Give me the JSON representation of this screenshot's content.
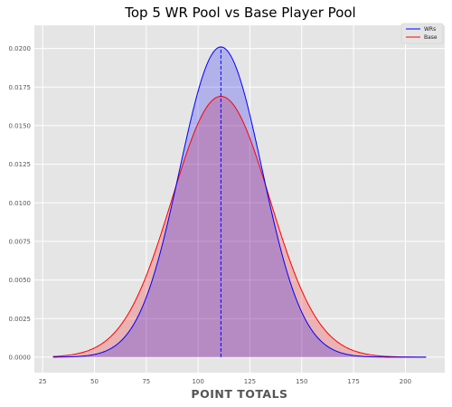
{
  "chart_data": {
    "type": "line",
    "title": "Top 5 WR Pool vs Base Player Pool",
    "xlabel": "POINT TOTALS",
    "ylabel": "",
    "xlim": [
      21,
      219
    ],
    "ylim": [
      -0.001,
      0.0215
    ],
    "x_range": [
      30,
      210
    ],
    "xticks": [
      25,
      50,
      75,
      100,
      125,
      150,
      175,
      200
    ],
    "yticks": [
      "0.0000",
      "0.0025",
      "0.0050",
      "0.0075",
      "0.0100",
      "0.0125",
      "0.0150",
      "0.0175",
      "0.0200"
    ],
    "grid": true,
    "legend": "top-right",
    "series": [
      {
        "name": "WRs",
        "color": "#0000ff",
        "fill": "#0000ff",
        "mean": 111,
        "std": 19.85,
        "peak": 0.0201
      },
      {
        "name": "Base",
        "color": "#ff0000",
        "fill": "#ff0000",
        "mean": 111,
        "std": 23.6,
        "peak": 0.0169
      }
    ],
    "vlines": [
      {
        "x": 111,
        "series": "WRs"
      }
    ]
  }
}
